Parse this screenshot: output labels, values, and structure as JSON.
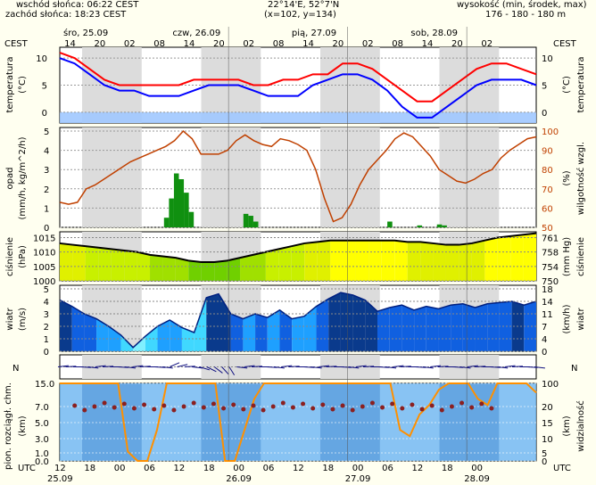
{
  "header": {
    "sunrise": "wschód słońca: 06:22 CEST",
    "sunset": "zachód słońca: 18:23 CEST",
    "coords": "22°14'E, 52°7'N",
    "grid": "(x=102,  y=134)",
    "altitude_label": "wysokość (min, środek, max)",
    "altitude_values": "176 - 180 - 180 m",
    "tz": "CEST"
  },
  "days_top": [
    {
      "label": "śro, 25.09",
      "hour": 0
    },
    {
      "label": "czw, 26.09",
      "hour": 22
    },
    {
      "label": "pią, 27.09",
      "hour": 46
    },
    {
      "label": "sob, 28.09",
      "hour": 70
    }
  ],
  "hours_top": [
    "14",
    "20",
    "02",
    "08",
    "14",
    "20",
    "02",
    "08",
    "14",
    "20",
    "02",
    "08",
    "14",
    "20",
    "02"
  ],
  "hours_bottom": [
    "12",
    "18",
    "00",
    "06",
    "12",
    "18",
    "00",
    "06",
    "12",
    "18",
    "00",
    "06",
    "12",
    "18",
    "00"
  ],
  "dates_bottom": [
    {
      "label": "25.09",
      "hour": 0
    },
    {
      "label": "26.09",
      "hour": 36
    },
    {
      "label": "27.09",
      "hour": 60
    },
    {
      "label": "28.09",
      "hour": 84
    }
  ],
  "utc_label": "UTC",
  "panels": {
    "temperature": {
      "label_left": "temperatura",
      "unit_left": "(°C)",
      "label_right": "temperatura",
      "unit_right": "(°C)",
      "ticks": [
        "10",
        "5",
        "0"
      ]
    },
    "precip": {
      "label_left": "opad",
      "unit_left": "(mm/h, kg/m^2/h)",
      "label_right": "wilgotność wzgl.",
      "unit_right": "(%)",
      "ticks_left": [
        "5",
        "4",
        "3",
        "2",
        "1",
        "0"
      ],
      "ticks_right": [
        "100",
        "90",
        "80",
        "70",
        "60",
        "50"
      ]
    },
    "pressure": {
      "label_left": "ciśnienie",
      "unit_left": "(hPa)",
      "label_right": "ciśnienie",
      "unit_right": "(mm Hg)",
      "ticks_left": [
        "1015",
        "1010",
        "1005",
        "1000"
      ],
      "ticks_right": [
        "761",
        "758",
        "754",
        "750"
      ]
    },
    "wind": {
      "label_left": "wiatr",
      "unit_left": "(m/s)",
      "label_right": "wiatr",
      "unit_right": "(km/h)",
      "ticks_left": [
        "5",
        "4",
        "3",
        "2",
        "1",
        "0"
      ],
      "ticks_right": [
        "18",
        "14",
        "11",
        "7",
        "4",
        "0"
      ]
    },
    "direction": {
      "compass": "N"
    },
    "cloud": {
      "label_left": "pion. rozciągł. chm.",
      "unit_left": "(km)",
      "label_right": "widzialność",
      "unit_right": "(km)",
      "ticks_left": [
        "15.0",
        "7.0",
        "5.0",
        "3.0",
        "1.0",
        "0.0"
      ],
      "ticks_right": [
        "100",
        "20",
        "15",
        "10",
        "5",
        "0"
      ]
    }
  },
  "colors": {
    "background": "#fffff0",
    "night_shade": "#dcdcdc",
    "temp_max": "#ff0000",
    "temp_min": "#0000ff",
    "freeze_band": "#a0c8ff",
    "humidity": "#c04000",
    "precip_bar": "#109010",
    "pressure_line": "#000000",
    "visibility_line": "#ff9000"
  },
  "chart_data": [
    {
      "type": "line",
      "name": "temperature",
      "x_hours": [
        0,
        3,
        6,
        9,
        12,
        15,
        18,
        21,
        24,
        27,
        30,
        33,
        36,
        39,
        42,
        45,
        48,
        51,
        54,
        57,
        60,
        63,
        66,
        69,
        72,
        75,
        78,
        81,
        84,
        87,
        90,
        93,
        96
      ],
      "series": [
        {
          "values": [
            11,
            10,
            8,
            6,
            5,
            5,
            5,
            5,
            5,
            6,
            6,
            6,
            6,
            5,
            5,
            6,
            6,
            7,
            7,
            9,
            9,
            8,
            6,
            4,
            2,
            2,
            4,
            6,
            8,
            9,
            9,
            8,
            7
          ]
        },
        {
          "values": [
            10,
            9,
            7,
            5,
            4,
            4,
            3,
            3,
            3,
            4,
            5,
            5,
            5,
            4,
            3,
            3,
            3,
            5,
            6,
            7,
            7,
            6,
            4,
            1,
            -1,
            -1,
            1,
            3,
            5,
            6,
            6,
            6,
            5
          ]
        }
      ],
      "ylim": [
        -2,
        12
      ]
    },
    {
      "type": "bar",
      "name": "precipitation",
      "bars": [
        [
          21,
          0.5
        ],
        [
          22,
          1.5
        ],
        [
          23,
          2.8
        ],
        [
          24,
          2.5
        ],
        [
          25,
          1.8
        ],
        [
          26,
          0.8
        ],
        [
          37,
          0.7
        ],
        [
          38,
          0.6
        ],
        [
          39,
          0.3
        ],
        [
          66,
          0.3
        ],
        [
          72,
          0.1
        ],
        [
          76,
          0.15
        ],
        [
          77,
          0.1
        ]
      ],
      "humidity": [
        63,
        62,
        63,
        70,
        72,
        75,
        78,
        81,
        84,
        86,
        88,
        90,
        92,
        95,
        100,
        96,
        88,
        88,
        88,
        90,
        95,
        98,
        95,
        93,
        92,
        96,
        95,
        93,
        90,
        80,
        65,
        53,
        55,
        62,
        72,
        80,
        85,
        90,
        96,
        99,
        97,
        92,
        87,
        80,
        77,
        74,
        73,
        75,
        78,
        80,
        86,
        90,
        93,
        96,
        97
      ],
      "ylim": [
        0,
        5
      ]
    },
    {
      "type": "area",
      "name": "pressure",
      "values": [
        1013,
        1012.5,
        1012,
        1011.5,
        1011,
        1010.5,
        1010,
        1009,
        1008.5,
        1008,
        1007,
        1006.5,
        1006.5,
        1007,
        1008,
        1009,
        1010,
        1011,
        1012,
        1013,
        1013.5,
        1014,
        1014,
        1014,
        1014,
        1014,
        1014,
        1013.5,
        1013.5,
        1013,
        1012.5,
        1012.5,
        1013,
        1014,
        1015,
        1015.5,
        1016,
        1016.5
      ],
      "ylim": [
        1000,
        1017
      ]
    },
    {
      "type": "area",
      "name": "wind",
      "values": [
        4.1,
        3.6,
        3.0,
        2.6,
        2.0,
        1.3,
        0.3,
        1.2,
        2.0,
        2.5,
        1.9,
        1.5,
        4.3,
        4.6,
        3.0,
        2.6,
        3.0,
        2.7,
        3.3,
        2.6,
        2.8,
        3.6,
        4.2,
        4.7,
        4.5,
        4.1,
        3.2,
        3.5,
        3.7,
        3.3,
        3.6,
        3.4,
        3.7,
        3.8,
        3.5,
        3.8,
        3.9,
        4.0,
        3.7,
        4.0
      ],
      "ylim": [
        0,
        5
      ]
    },
    {
      "type": "scatter",
      "name": "cloud_visibility",
      "visibility": [
        25,
        25,
        25,
        25,
        25,
        25,
        25,
        3,
        0,
        0,
        10,
        25,
        25,
        25,
        25,
        25,
        25,
        0,
        0,
        10,
        20,
        25,
        25,
        25,
        25,
        25,
        25,
        25,
        25,
        25,
        25,
        25,
        25,
        25,
        25,
        10,
        8,
        15,
        18,
        23,
        25,
        25,
        25,
        20,
        18,
        25,
        25,
        25,
        25,
        22
      ]
    }
  ]
}
